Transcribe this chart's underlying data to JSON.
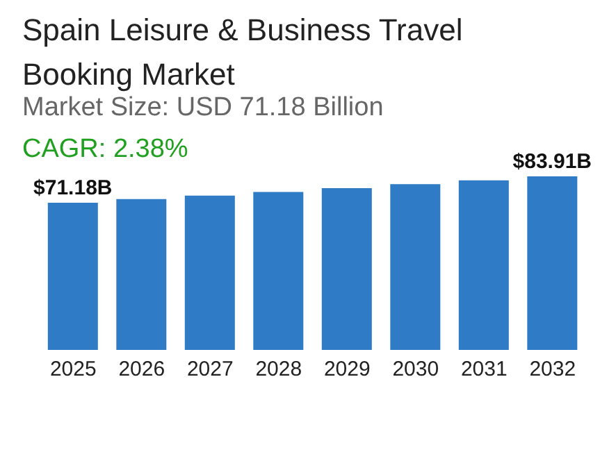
{
  "chart_data": {
    "type": "bar",
    "title": "Spain Leisure & Business Travel Booking Market",
    "subtitle": "Market Size: USD 71.18 Billion",
    "annotations": [
      "CAGR: 2.38%"
    ],
    "categories": [
      "2025",
      "2026",
      "2027",
      "2028",
      "2029",
      "2030",
      "2031",
      "2032"
    ],
    "values": [
      71.18,
      72.9,
      74.6,
      76.4,
      78.2,
      80.1,
      82.0,
      83.91
    ],
    "value_labels": [
      "$71.18B",
      null,
      null,
      null,
      null,
      null,
      null,
      "$83.91B"
    ],
    "color": "#2f7bc5",
    "grid": false,
    "legend": false,
    "tick_labels": "x"
  }
}
